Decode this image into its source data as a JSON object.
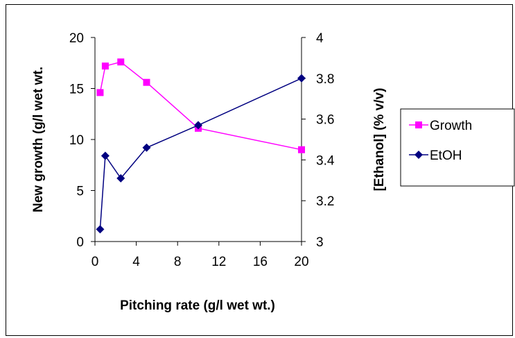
{
  "chart_data": {
    "type": "line",
    "x": [
      0.5,
      1,
      2.5,
      5,
      10,
      20
    ],
    "x_tick_labels": [
      "0",
      "4",
      "8",
      "12",
      "16",
      "20"
    ],
    "xlabel": "Pitching rate (g/l wet wt.)",
    "ylabel_left": "New growth (g/l wet wt.",
    "ylabel_right": "[Ethanol] (% v/v)",
    "ylim_left": [
      0,
      20
    ],
    "ylim_right": [
      3,
      4
    ],
    "y_ticks_left": [
      "0",
      "5",
      "10",
      "15",
      "20"
    ],
    "y_ticks_right": [
      "3",
      "3.2",
      "3.4",
      "3.6",
      "3.8",
      "4"
    ],
    "grid": false,
    "legend_position": "right",
    "series": [
      {
        "name": "Growth",
        "axis": "left",
        "color": "#ff00ff",
        "marker": "square",
        "values": [
          14.6,
          17.2,
          17.6,
          15.6,
          11.1,
          9.0
        ]
      },
      {
        "name": "EtOH",
        "axis": "right",
        "color": "#000080",
        "marker": "diamond",
        "values": [
          3.06,
          3.42,
          3.31,
          3.46,
          3.57,
          3.8
        ]
      }
    ]
  }
}
